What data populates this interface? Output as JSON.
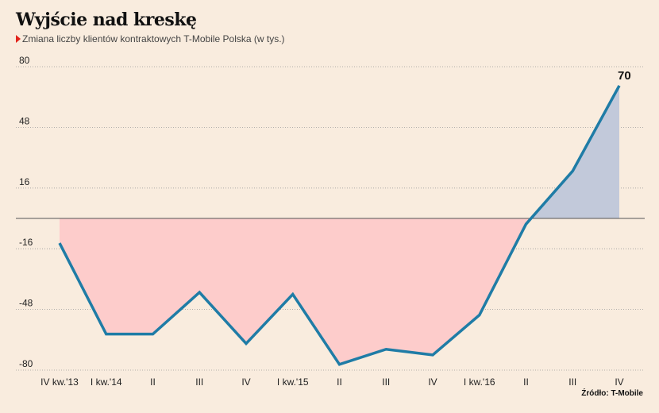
{
  "header": {
    "title": "Wyjście nad kreskę",
    "subtitle": "Zmiana liczby klientów kontraktowych T-Mobile Polska (w tys.)"
  },
  "source": "Źródło: T-Mobile",
  "colors": {
    "line": "#1f7ca6",
    "positive_fill": "#c2c9da",
    "negative_fill": "#fdcccb",
    "background": "#f9ecde",
    "accent": "#e2231a"
  },
  "chart_data": {
    "type": "line",
    "title": "Wyjście nad kreskę",
    "subtitle": "Zmiana liczby klientów kontraktowych T-Mobile Polska (w tys.)",
    "xlabel": "",
    "ylabel": "",
    "categories": [
      "IV kw.'13",
      "I kw.'14",
      "II",
      "III",
      "IV",
      "I kw.'15",
      "II",
      "III",
      "IV",
      "I kw.'16",
      "II",
      "III",
      "IV"
    ],
    "series": [
      {
        "values": [
          -13,
          -61,
          -61,
          -39,
          -66,
          -40,
          -77,
          -69,
          -72,
          -51,
          -3,
          25,
          70
        ]
      }
    ],
    "data_labels": [
      {
        "index": 12,
        "text": "70"
      }
    ],
    "y_ticks": [
      80,
      48,
      16,
      -16,
      -48,
      -80
    ],
    "ylim": [
      -80,
      80
    ],
    "grid": "horizontal dotted",
    "zero_line": true
  }
}
